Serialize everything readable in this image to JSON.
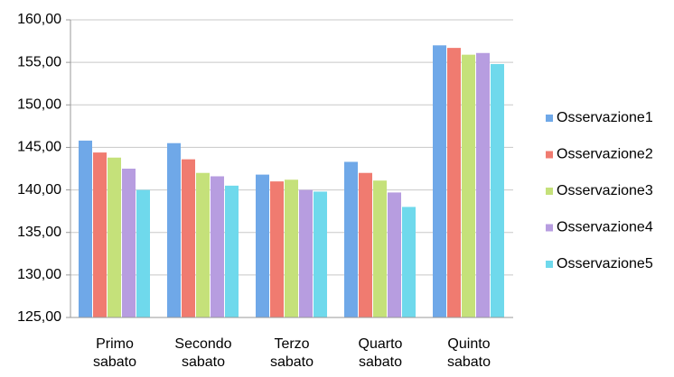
{
  "chart_data": {
    "type": "bar",
    "categories": [
      "Primo sabato",
      "Secondo sabato",
      "Terzo sabato",
      "Quarto sabato",
      "Quinto sabato"
    ],
    "series": [
      {
        "name": "Osservazione1",
        "color": "#6fa8e8",
        "values": [
          145.8,
          145.5,
          141.8,
          143.3,
          157.0
        ]
      },
      {
        "name": "Osservazione2",
        "color": "#f07b70",
        "values": [
          144.4,
          143.6,
          141.0,
          142.0,
          156.7
        ]
      },
      {
        "name": "Osservazione3",
        "color": "#c5e17a",
        "values": [
          143.8,
          142.0,
          141.2,
          141.1,
          155.9
        ]
      },
      {
        "name": "Osservazione4",
        "color": "#b79de0",
        "values": [
          142.5,
          141.6,
          140.0,
          139.7,
          156.1
        ]
      },
      {
        "name": "Osservazione5",
        "color": "#6fd9ec",
        "values": [
          140.0,
          140.5,
          139.8,
          138.0,
          154.8
        ]
      }
    ],
    "ylim": [
      125,
      160
    ],
    "yticks": [
      {
        "value": 125,
        "label": "125,00"
      },
      {
        "value": 130,
        "label": "130,00"
      },
      {
        "value": 135,
        "label": "135,00"
      },
      {
        "value": 140,
        "label": "140,00"
      },
      {
        "value": 145,
        "label": "145,00"
      },
      {
        "value": 150,
        "label": "150,00"
      },
      {
        "value": 155,
        "label": "155,00"
      },
      {
        "value": 160,
        "label": "160,00"
      }
    ],
    "grid": true,
    "legend": "right"
  }
}
